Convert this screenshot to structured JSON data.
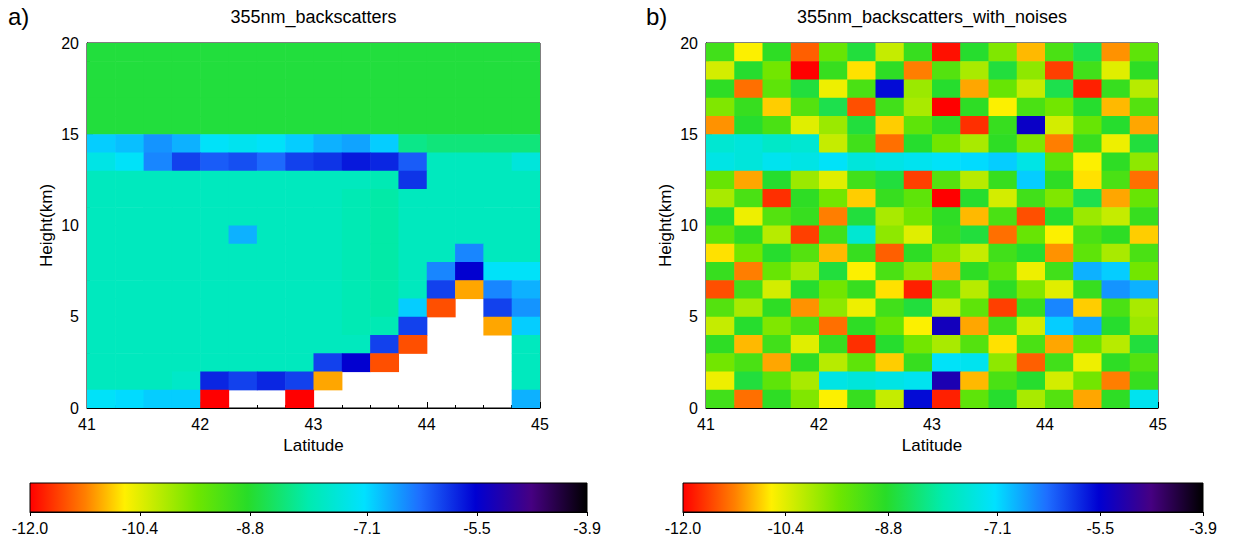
{
  "chart_data": [
    {
      "type": "heatmap",
      "panel": "a)",
      "title": "355nm_backscatters",
      "xlabel": "Latitude",
      "ylabel": "Height(km)",
      "xlim": [
        41,
        45
      ],
      "xticks": [
        41,
        42,
        43,
        44,
        45
      ],
      "ylim": [
        0,
        20
      ],
      "yticks": [
        0,
        5,
        10,
        15,
        20
      ],
      "x": [
        41.125,
        41.375,
        41.625,
        41.875,
        42.125,
        42.375,
        42.625,
        42.875,
        43.125,
        43.375,
        43.625,
        43.875,
        44.125,
        44.375,
        44.625,
        44.875
      ],
      "y": [
        19.5,
        18.5,
        17.5,
        16.5,
        15.5,
        14.5,
        13.5,
        12.5,
        11.5,
        10.5,
        9.5,
        8.5,
        7.5,
        6.5,
        5.5,
        4.5,
        3.5,
        2.5,
        1.5,
        0.5
      ],
      "cells": [
        [
          -8.7,
          -8.7,
          -8.7,
          -8.7,
          -8.7,
          -8.7,
          -8.7,
          -8.7,
          -8.7,
          -8.7,
          -8.7,
          -8.7,
          -8.7,
          -8.7,
          -8.7,
          -8.7
        ],
        [
          -8.7,
          -8.7,
          -8.7,
          -8.7,
          -8.7,
          -8.7,
          -8.7,
          -8.7,
          -8.7,
          -8.7,
          -8.7,
          -8.7,
          -8.7,
          -8.7,
          -8.7,
          -8.7
        ],
        [
          -8.7,
          -8.7,
          -8.7,
          -8.7,
          -8.7,
          -8.7,
          -8.7,
          -8.7,
          -8.7,
          -8.7,
          -8.7,
          -8.7,
          -8.7,
          -8.7,
          -8.7,
          -8.7
        ],
        [
          -8.7,
          -8.7,
          -8.7,
          -8.7,
          -8.7,
          -8.7,
          -8.7,
          -8.7,
          -8.7,
          -8.7,
          -8.7,
          -8.7,
          -8.7,
          -8.7,
          -8.7,
          -8.7
        ],
        [
          -8.7,
          -8.7,
          -8.7,
          -8.7,
          -8.7,
          -8.7,
          -8.7,
          -8.7,
          -8.7,
          -8.7,
          -8.7,
          -8.7,
          -8.7,
          -8.7,
          -8.7,
          -8.7
        ],
        [
          -7.0,
          -6.9,
          -6.6,
          -6.8,
          -7.2,
          -7.3,
          -7.2,
          -7.0,
          -6.8,
          -6.7,
          -7.0,
          -8.2,
          -8.3,
          -8.3,
          -8.3,
          -8.3
        ],
        [
          -7.4,
          -7.2,
          -6.5,
          -6.0,
          -6.2,
          -6.1,
          -6.3,
          -6.0,
          -5.9,
          -5.7,
          -5.8,
          -6.2,
          -7.8,
          -7.8,
          -7.8,
          -7.5
        ],
        [
          -7.8,
          -7.8,
          -7.8,
          -7.8,
          -7.8,
          -7.8,
          -7.8,
          -7.8,
          -7.8,
          -7.8,
          -7.9,
          -5.9,
          -7.8,
          -7.8,
          -7.8,
          -7.8
        ],
        [
          -7.8,
          -7.8,
          -7.8,
          -7.8,
          -7.8,
          -7.8,
          -7.8,
          -7.8,
          -7.8,
          -7.9,
          -8.0,
          -7.8,
          -7.8,
          -7.8,
          -7.8,
          -7.8
        ],
        [
          -7.8,
          -7.8,
          -7.8,
          -7.8,
          -7.8,
          -7.8,
          -7.8,
          -7.8,
          -7.8,
          -7.9,
          -8.0,
          -7.8,
          -7.8,
          -7.8,
          -7.8,
          -7.8
        ],
        [
          -7.8,
          -7.8,
          -7.8,
          -7.8,
          -7.8,
          -6.8,
          -7.8,
          -7.8,
          -7.8,
          -7.9,
          -8.0,
          -7.8,
          -7.8,
          -7.8,
          -7.8,
          -7.8
        ],
        [
          -7.8,
          -7.8,
          -7.8,
          -7.8,
          -7.8,
          -7.8,
          -7.8,
          -7.8,
          -7.8,
          -7.9,
          -8.0,
          -7.8,
          -7.8,
          -6.5,
          -7.8,
          -7.8
        ],
        [
          -7.8,
          -7.8,
          -7.8,
          -7.8,
          -7.8,
          -7.8,
          -7.8,
          -7.8,
          -7.8,
          -7.9,
          -8.0,
          -7.8,
          -6.5,
          -5.5,
          -7.2,
          -7.2
        ],
        [
          -7.8,
          -7.8,
          -7.8,
          -7.8,
          -7.8,
          -7.8,
          -7.8,
          -7.8,
          -7.8,
          -7.9,
          -8.0,
          -7.8,
          -6.0,
          -11.0,
          -6.5,
          -6.8
        ],
        [
          -7.8,
          -7.8,
          -7.8,
          -7.8,
          -7.8,
          -7.8,
          -7.8,
          -7.8,
          -7.8,
          -7.9,
          -8.0,
          -7.0,
          -11.5,
          null,
          -6.0,
          -6.6
        ],
        [
          -7.8,
          -7.8,
          -7.8,
          -7.8,
          -7.8,
          -7.8,
          -7.8,
          -7.8,
          -7.8,
          -7.9,
          -7.9,
          -6.0,
          null,
          null,
          -11.0,
          -7.0
        ],
        [
          -7.8,
          -7.8,
          -7.8,
          -7.8,
          -7.8,
          -7.8,
          -7.8,
          -7.8,
          -7.8,
          -7.8,
          -6.0,
          -11.5,
          null,
          null,
          null,
          -7.8
        ],
        [
          -7.8,
          -7.8,
          -7.8,
          -7.8,
          -7.8,
          -7.8,
          -7.8,
          -7.8,
          -6.0,
          -5.5,
          -11.5,
          null,
          null,
          null,
          null,
          -7.8
        ],
        [
          -7.8,
          -7.8,
          -7.8,
          -7.7,
          -5.8,
          -6.0,
          -5.8,
          -6.0,
          -11.0,
          null,
          null,
          null,
          null,
          null,
          null,
          -7.8
        ],
        [
          -7.2,
          -7.1,
          -7.0,
          -7.0,
          -12.0,
          null,
          null,
          -12.0,
          null,
          null,
          null,
          null,
          null,
          null,
          null,
          -6.8
        ]
      ],
      "color_range": [
        -12,
        -3.9
      ],
      "color_ticks": [
        {
          "value": -12,
          "label": "-12.0"
        },
        -10.4,
        -8.8,
        -7.1,
        -5.5,
        -3.9
      ]
    },
    {
      "type": "heatmap",
      "panel": "b)",
      "title": "355nm_backscatters_with_noises",
      "xlabel": "Latitude",
      "ylabel": "Height(km)",
      "xlim": [
        41,
        45
      ],
      "xticks": [
        41,
        42,
        43,
        44,
        45
      ],
      "ylim": [
        0,
        20
      ],
      "yticks": [
        0,
        5,
        10,
        15,
        20
      ],
      "x": [
        41.125,
        41.375,
        41.625,
        41.875,
        42.125,
        42.375,
        42.625,
        42.875,
        43.125,
        43.375,
        43.625,
        43.875,
        44.125,
        44.375,
        44.625,
        44.875
      ],
      "y": [
        19.5,
        18.5,
        17.5,
        16.5,
        15.5,
        14.5,
        13.5,
        12.5,
        11.5,
        10.5,
        9.5,
        8.5,
        7.5,
        6.5,
        5.5,
        4.5,
        3.5,
        2.5,
        1.5,
        0.5
      ],
      "cells": [
        [
          -9.1,
          -10.6,
          -8.9,
          -11.4,
          -9.5,
          -8.7,
          -10.2,
          -9.0,
          -11.9,
          -8.8,
          -9.7,
          -10.9,
          -9.2,
          -8.6,
          -11.1,
          -9.4
        ],
        [
          -10.3,
          -8.8,
          -9.6,
          -12.0,
          -9.0,
          -10.7,
          -8.9,
          -11.2,
          -9.3,
          -10.0,
          -8.7,
          -9.8,
          -11.6,
          -9.1,
          -10.4,
          -8.9
        ],
        [
          -8.9,
          -11.3,
          -9.4,
          -8.7,
          -10.5,
          -9.2,
          -5.6,
          -9.9,
          -8.8,
          -11.0,
          -9.5,
          -10.2,
          -8.6,
          -11.8,
          -9.0,
          -10.1
        ],
        [
          -9.7,
          -9.0,
          -10.8,
          -9.3,
          -8.6,
          -11.5,
          -9.1,
          -10.0,
          -12.0,
          -8.9,
          -10.6,
          -9.2,
          -9.6,
          -8.8,
          -10.9,
          -9.3
        ],
        [
          -11.1,
          -8.8,
          -9.2,
          -10.4,
          -9.9,
          -8.7,
          -10.8,
          -9.4,
          -8.9,
          -11.7,
          -9.0,
          -5.4,
          -10.3,
          -9.5,
          -8.8,
          -11.0
        ],
        [
          -7.6,
          -7.5,
          -7.7,
          -7.6,
          -10.2,
          -9.1,
          -11.3,
          -8.8,
          -9.6,
          -10.0,
          -8.9,
          -9.7,
          -11.2,
          -9.0,
          -10.5,
          -8.7
        ],
        [
          -7.4,
          -7.5,
          -7.3,
          -7.4,
          -7.2,
          -7.5,
          -7.4,
          -7.3,
          -7.2,
          -7.1,
          -7.0,
          -7.4,
          -9.4,
          -10.6,
          -8.9,
          -9.8
        ],
        [
          -9.5,
          -11.0,
          -8.8,
          -9.9,
          -10.4,
          -9.1,
          -8.7,
          -11.6,
          -9.3,
          -10.1,
          -9.0,
          -7.0,
          -8.9,
          -10.7,
          -9.2,
          -11.3
        ],
        [
          -10.0,
          -9.2,
          -11.7,
          -8.9,
          -9.6,
          -10.8,
          -9.0,
          -9.4,
          -12.0,
          -8.8,
          -10.3,
          -9.1,
          -9.7,
          -8.6,
          -11.0,
          -9.5
        ],
        [
          -8.8,
          -10.5,
          -9.3,
          -9.0,
          -11.2,
          -8.7,
          -10.0,
          -9.6,
          -8.9,
          -10.9,
          -9.2,
          -11.5,
          -8.8,
          -9.9,
          -10.2,
          -9.0
        ],
        [
          -9.4,
          -8.9,
          -10.1,
          -11.6,
          -9.1,
          -7.6,
          -9.8,
          -10.4,
          -9.0,
          -8.7,
          -11.3,
          -9.5,
          -10.6,
          -9.2,
          -8.9,
          -10.8
        ],
        [
          -10.7,
          -9.6,
          -8.8,
          -9.3,
          -10.9,
          -9.0,
          -11.4,
          -8.9,
          -9.7,
          -10.2,
          -9.1,
          -8.8,
          -11.1,
          -9.4,
          -10.0,
          -9.2
        ],
        [
          -9.0,
          -11.2,
          -9.5,
          -10.0,
          -8.7,
          -10.6,
          -9.2,
          -9.8,
          -11.0,
          -8.9,
          -9.4,
          -10.5,
          -9.1,
          -6.8,
          -7.0,
          -9.6
        ],
        [
          -11.5,
          -9.1,
          -10.3,
          -8.8,
          -9.6,
          -9.0,
          -10.7,
          -11.8,
          -9.3,
          -10.1,
          -8.9,
          -9.7,
          -10.4,
          -9.0,
          -6.6,
          -6.8
        ],
        [
          -9.3,
          -10.0,
          -8.9,
          -11.1,
          -9.8,
          -10.5,
          -9.1,
          -8.7,
          -10.2,
          -9.4,
          -11.6,
          -9.0,
          -6.5,
          -10.8,
          -9.2,
          -10.0
        ],
        [
          -10.2,
          -8.8,
          -9.7,
          -9.2,
          -11.3,
          -8.9,
          -9.5,
          -10.6,
          -5.3,
          -11.0,
          -9.1,
          -10.3,
          -7.0,
          -6.7,
          -8.8,
          -9.9
        ],
        [
          -8.9,
          -10.9,
          -9.1,
          -10.4,
          -9.0,
          -11.7,
          -8.8,
          -9.6,
          -10.0,
          -9.3,
          -10.7,
          -9.2,
          -11.0,
          -9.5,
          -10.1,
          -8.7
        ],
        [
          -9.6,
          -9.2,
          -11.0,
          -8.9,
          -10.1,
          -9.4,
          -10.8,
          -9.0,
          -7.2,
          -7.3,
          -9.8,
          -11.4,
          -9.1,
          -10.5,
          -8.9,
          -9.3
        ],
        [
          -10.5,
          -8.7,
          -9.4,
          -10.0,
          -7.4,
          -7.5,
          -7.4,
          -7.3,
          -5.2,
          -10.9,
          -9.2,
          -8.8,
          -10.3,
          -9.6,
          -11.2,
          -9.0
        ],
        [
          -9.1,
          -11.3,
          -8.9,
          -9.7,
          -10.6,
          -9.0,
          -10.2,
          -5.6,
          -11.8,
          -9.4,
          -8.8,
          -10.0,
          -9.3,
          -11.0,
          -8.9,
          -7.3
        ]
      ],
      "color_range": [
        -12,
        -3.9
      ],
      "color_ticks": [
        {
          "value": -12,
          "label": "-12.0"
        },
        -10.4,
        -8.8,
        -7.1,
        -5.5,
        -3.9
      ]
    }
  ]
}
